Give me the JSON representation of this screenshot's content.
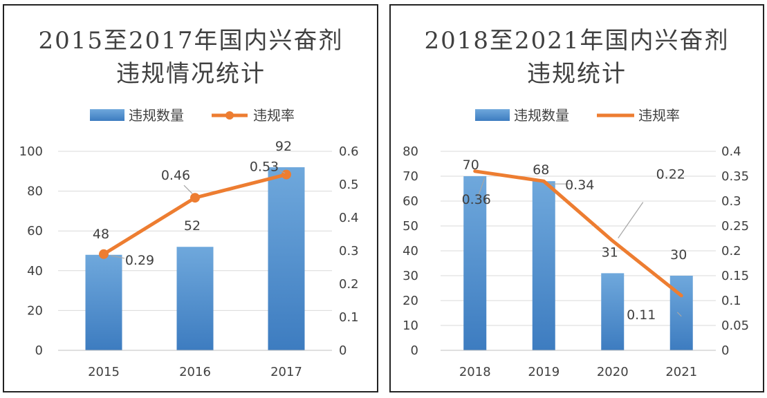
{
  "chart_data": [
    {
      "type": "bar",
      "title_lines": [
        "2015至2017年国内兴奋剂",
        "违规情况统计"
      ],
      "legend": [
        "违规数量",
        "违规率"
      ],
      "categories": [
        "2015",
        "2016",
        "2017"
      ],
      "series": [
        {
          "name": "违规数量",
          "type": "bar",
          "axis": "left",
          "values": [
            48,
            52,
            92
          ]
        },
        {
          "name": "违规率",
          "type": "line",
          "axis": "right",
          "markers": true,
          "values": [
            0.29,
            0.46,
            0.53
          ]
        }
      ],
      "y_left": {
        "min": 0,
        "max": 100,
        "step": 20,
        "ticks": [
          "0",
          "20",
          "40",
          "60",
          "80",
          "100"
        ]
      },
      "y_right": {
        "min": 0,
        "max": 0.6,
        "step": 0.1,
        "ticks": [
          "0",
          "0.1",
          "0.2",
          "0.3",
          "0.4",
          "0.5",
          "0.6"
        ]
      },
      "bar_labels": [
        "48",
        "52",
        "92"
      ],
      "line_labels": [
        "0.29",
        "0.46",
        "0.53"
      ],
      "grid": true,
      "legend_position": "top",
      "colors": {
        "bar": "#5b9bd5",
        "line": "#ed7d31"
      }
    },
    {
      "type": "bar",
      "title_lines": [
        "2018至2021年国内兴奋剂",
        "违规统计"
      ],
      "legend": [
        "违规数量",
        "违规率"
      ],
      "categories": [
        "2018",
        "2019",
        "2020",
        "2021"
      ],
      "series": [
        {
          "name": "违规数量",
          "type": "bar",
          "axis": "left",
          "values": [
            70,
            68,
            31,
            30
          ]
        },
        {
          "name": "违规率",
          "type": "line",
          "axis": "right",
          "markers": false,
          "values": [
            0.36,
            0.34,
            0.22,
            0.11
          ]
        }
      ],
      "y_left": {
        "min": 0,
        "max": 80,
        "step": 10,
        "ticks": [
          "0",
          "10",
          "20",
          "30",
          "40",
          "50",
          "60",
          "70",
          "80"
        ]
      },
      "y_right": {
        "min": 0,
        "max": 0.4,
        "step": 0.05,
        "ticks": [
          "0",
          "0.05",
          "0.1",
          "0.15",
          "0.2",
          "0.25",
          "0.3",
          "0.35",
          "0.4"
        ]
      },
      "bar_labels": [
        "70",
        "68",
        "31",
        "30"
      ],
      "line_labels": [
        "0.36",
        "0.34",
        "0.22",
        "0.11"
      ],
      "grid": true,
      "legend_position": "top",
      "colors": {
        "bar": "#5b9bd5",
        "line": "#ed7d31"
      }
    }
  ]
}
